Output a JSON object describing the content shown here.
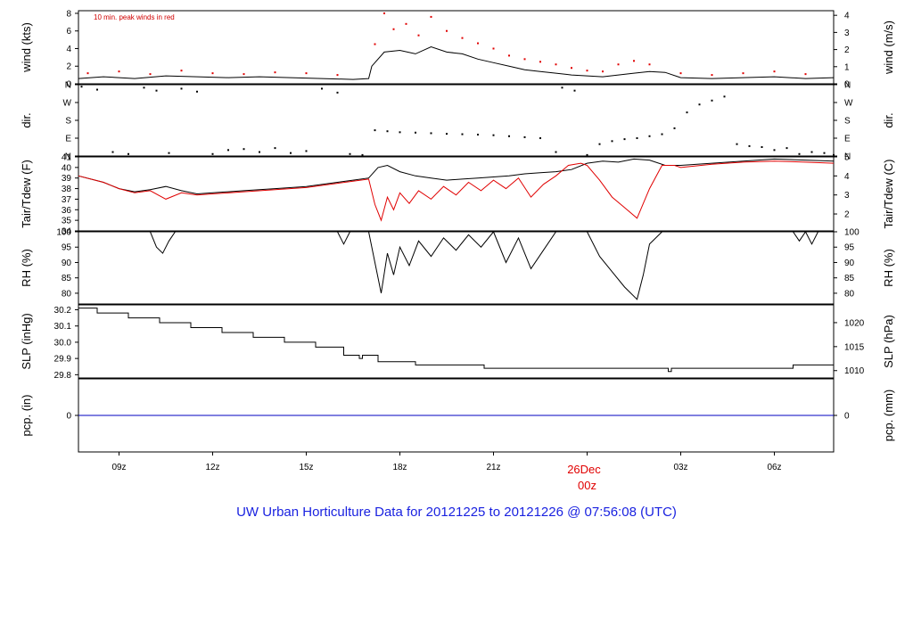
{
  "title": "UW Urban Horticulture Data for 20121225  to  20121226 @ 07:56:08  (UTC)",
  "colors": {
    "series": "#000000",
    "dewpoint": "#e00000",
    "peak": "#e00000",
    "precip": "#0000c0",
    "title": "#1a22e0"
  },
  "x_axis": {
    "hours_range": [
      7.7,
      31.9
    ],
    "ticks": [
      {
        "hour": 9,
        "label": "09z"
      },
      {
        "hour": 12,
        "label": "12z"
      },
      {
        "hour": 15,
        "label": "15z"
      },
      {
        "hour": 18,
        "label": "18z"
      },
      {
        "hour": 21,
        "label": "21z"
      },
      {
        "hour": 24,
        "label": "00z"
      },
      {
        "hour": 27,
        "label": "03z"
      },
      {
        "hour": 30,
        "label": "06z"
      }
    ],
    "day_label": "26Dec"
  },
  "chart_data": [
    {
      "type": "line",
      "panel": "wind",
      "ylabel_left": "wind (kts)",
      "ylabel_right": "wind (m/s)",
      "annotation": "10 min. peak winds in red",
      "ylim": [
        0,
        8.3
      ],
      "yticks_left": [
        0,
        2,
        4,
        6,
        8
      ],
      "yticks_right": [
        0,
        1,
        2,
        3,
        4
      ],
      "right_factor": 0.5144,
      "series": [
        {
          "label": "wind",
          "x": [
            7.7,
            8.5,
            9.5,
            10.5,
            11.5,
            12.5,
            13.5,
            14.5,
            15.5,
            16.5,
            17.0,
            17.1,
            17.5,
            18.0,
            18.5,
            19.0,
            19.5,
            20.0,
            20.5,
            21.0,
            21.5,
            22.0,
            22.5,
            23.0,
            23.5,
            24.0,
            24.5,
            25.0,
            25.5,
            26.0,
            26.5,
            27.0,
            28.0,
            29.0,
            30.0,
            31.0,
            31.9
          ],
          "y": [
            0.6,
            0.8,
            0.6,
            0.9,
            0.8,
            0.7,
            0.8,
            0.7,
            0.6,
            0.5,
            0.6,
            2.0,
            3.6,
            3.8,
            3.4,
            4.2,
            3.6,
            3.4,
            2.8,
            2.4,
            2.0,
            1.6,
            1.4,
            1.2,
            1.0,
            0.9,
            0.8,
            1.0,
            1.2,
            1.4,
            1.3,
            0.7,
            0.6,
            0.7,
            0.8,
            0.6,
            0.7
          ]
        },
        {
          "label": "peak",
          "x": [
            8.0,
            9.0,
            10.0,
            11.0,
            12.0,
            13.0,
            14.0,
            15.0,
            16.0,
            17.2,
            17.5,
            17.8,
            18.2,
            18.6,
            19.0,
            19.5,
            20.0,
            20.5,
            21.0,
            21.5,
            22.0,
            22.5,
            23.0,
            23.5,
            24.0,
            24.5,
            25.0,
            25.5,
            26.0,
            27.0,
            28.0,
            29.0,
            30.0,
            31.0
          ],
          "y": [
            1.2,
            1.4,
            1.1,
            1.5,
            1.2,
            1.1,
            1.3,
            1.2,
            1.0,
            4.5,
            8.0,
            6.2,
            6.8,
            5.5,
            7.6,
            6.0,
            5.2,
            4.6,
            4.0,
            3.2,
            2.8,
            2.5,
            2.2,
            1.8,
            1.5,
            1.4,
            2.2,
            2.6,
            2.2,
            1.2,
            1.0,
            1.2,
            1.4,
            1.1
          ]
        }
      ]
    },
    {
      "type": "scatter",
      "panel": "dir",
      "ylabel_left": "dir.",
      "ylabel_right": "dir.",
      "ylim": [
        0,
        360
      ],
      "ytick_labels": [
        "N",
        "E",
        "S",
        "W",
        "N"
      ],
      "ytick_values": [
        0,
        90,
        180,
        270,
        360
      ],
      "series": [
        {
          "label": "direction",
          "x": [
            7.8,
            8.3,
            8.8,
            9.3,
            9.8,
            10.2,
            10.6,
            11.0,
            11.5,
            12.0,
            12.5,
            13.0,
            13.5,
            14.0,
            14.5,
            15.0,
            15.5,
            16.0,
            16.4,
            16.8,
            17.2,
            17.6,
            18.0,
            18.5,
            19.0,
            19.5,
            20.0,
            20.5,
            21.0,
            21.5,
            22.0,
            22.5,
            23.0,
            23.2,
            23.6,
            24.0,
            24.4,
            24.8,
            25.2,
            25.6,
            26.0,
            26.4,
            26.8,
            27.2,
            27.6,
            28.0,
            28.4,
            28.8,
            29.2,
            29.6,
            30.0,
            30.4,
            30.8,
            31.2,
            31.6,
            31.9
          ],
          "y": [
            350,
            335,
            20,
            10,
            345,
            330,
            15,
            340,
            325,
            10,
            30,
            35,
            20,
            40,
            15,
            25,
            340,
            320,
            10,
            5,
            130,
            125,
            120,
            118,
            115,
            112,
            110,
            108,
            105,
            100,
            95,
            90,
            20,
            345,
            330,
            5,
            60,
            75,
            85,
            90,
            100,
            110,
            140,
            220,
            260,
            280,
            300,
            60,
            50,
            45,
            30,
            40,
            10,
            20,
            15,
            5
          ]
        }
      ]
    },
    {
      "type": "line",
      "panel": "temperature",
      "ylabel_left": "Tair/Tdew (F)",
      "ylabel_right": "Tair/Tdew (C)",
      "ylim": [
        34,
        41
      ],
      "yticks_left": [
        34,
        35,
        36,
        37,
        38,
        39,
        40,
        41
      ],
      "yticks_right": [
        2,
        3,
        4,
        5
      ],
      "series": [
        {
          "label": "Tair",
          "x": [
            7.7,
            8.5,
            9.0,
            9.5,
            10.0,
            10.5,
            11.0,
            11.5,
            12.0,
            13.0,
            14.0,
            15.0,
            16.0,
            16.5,
            17.0,
            17.3,
            17.6,
            18.0,
            18.5,
            19.0,
            19.5,
            20.0,
            20.5,
            21.0,
            21.5,
            22.0,
            22.5,
            23.0,
            23.5,
            24.0,
            24.5,
            25.0,
            25.5,
            26.0,
            26.5,
            27.0,
            28.0,
            29.0,
            30.0,
            31.0,
            31.9
          ],
          "y": [
            39.2,
            38.6,
            38.0,
            37.7,
            37.9,
            38.2,
            37.8,
            37.5,
            37.6,
            37.8,
            38.0,
            38.2,
            38.6,
            38.8,
            39.0,
            40.0,
            40.2,
            39.6,
            39.2,
            39.0,
            38.8,
            38.9,
            39.0,
            39.1,
            39.2,
            39.4,
            39.5,
            39.6,
            39.8,
            40.4,
            40.6,
            40.5,
            40.8,
            40.7,
            40.2,
            40.2,
            40.4,
            40.6,
            40.8,
            40.7,
            40.6
          ]
        },
        {
          "label": "Tdew",
          "x": [
            7.7,
            8.5,
            9.0,
            9.5,
            10.0,
            10.5,
            11.0,
            11.5,
            12.0,
            13.0,
            14.0,
            15.0,
            16.0,
            16.5,
            17.0,
            17.2,
            17.4,
            17.6,
            17.8,
            18.0,
            18.3,
            18.6,
            19.0,
            19.4,
            19.8,
            20.2,
            20.6,
            21.0,
            21.4,
            21.8,
            22.2,
            22.6,
            23.0,
            23.4,
            23.8,
            24.0,
            24.4,
            24.8,
            25.2,
            25.6,
            26.0,
            26.4,
            26.8,
            27.0,
            28.0,
            29.0,
            30.0,
            31.0,
            31.9
          ],
          "y": [
            39.2,
            38.6,
            38.0,
            37.6,
            37.8,
            37.0,
            37.6,
            37.4,
            37.5,
            37.7,
            37.9,
            38.1,
            38.5,
            38.7,
            38.9,
            36.5,
            35.0,
            37.2,
            36.0,
            37.6,
            36.6,
            37.8,
            37.0,
            38.2,
            37.4,
            38.6,
            37.8,
            38.8,
            38.0,
            39.0,
            37.2,
            38.4,
            39.2,
            40.2,
            40.4,
            40.2,
            38.8,
            37.2,
            36.2,
            35.2,
            38.0,
            40.2,
            40.2,
            40.0,
            40.3,
            40.5,
            40.6,
            40.5,
            40.4
          ]
        }
      ]
    },
    {
      "type": "line",
      "panel": "rh",
      "ylabel_left": "RH (%)",
      "ylabel_right": "RH (%)",
      "ylim": [
        76.5,
        100
      ],
      "yticks_left": [
        80,
        85,
        90,
        95,
        100
      ],
      "yticks_right": [
        80,
        85,
        90,
        95,
        100
      ],
      "series": [
        {
          "label": "RH",
          "x": [
            7.7,
            9.0,
            10.0,
            10.2,
            10.4,
            10.6,
            10.8,
            11.5,
            13.0,
            15.0,
            16.0,
            16.2,
            16.4,
            16.6,
            17.0,
            17.2,
            17.4,
            17.6,
            17.8,
            18.0,
            18.3,
            18.6,
            19.0,
            19.4,
            19.8,
            20.2,
            20.6,
            21.0,
            21.4,
            21.8,
            22.2,
            22.6,
            23.0,
            23.4,
            23.8,
            24.0,
            24.4,
            24.8,
            25.2,
            25.6,
            25.8,
            26.0,
            26.4,
            27.0,
            28.0,
            29.0,
            30.0,
            30.6,
            30.8,
            31.0,
            31.2,
            31.4,
            31.9
          ],
          "y": [
            100,
            100,
            100,
            95,
            93,
            97,
            100,
            100,
            100,
            100,
            100,
            96,
            100,
            100,
            100,
            90,
            80,
            93,
            86,
            95,
            89,
            97,
            92,
            98,
            94,
            99,
            95,
            100,
            90,
            98,
            88,
            94,
            100,
            100,
            100,
            100,
            92,
            87,
            82,
            78,
            86,
            96,
            100,
            100,
            100,
            100,
            100,
            100,
            97,
            100,
            96,
            100,
            100
          ]
        }
      ]
    },
    {
      "type": "line",
      "panel": "slp",
      "ylabel_left": "SLP (inHg)",
      "ylabel_right": "SLP (hPa)",
      "ylim": [
        29.78,
        30.23
      ],
      "yticks_left": [
        29.8,
        29.9,
        30.0,
        30.1,
        30.2
      ],
      "ytick_labels_left": [
        "29.8",
        "29.9",
        "30.0",
        "30.1",
        "30.2"
      ],
      "yticks_right_hpa": [
        1010,
        1015,
        1020
      ],
      "series": [
        {
          "label": "SLP",
          "x": [
            7.7,
            8.3,
            8.3,
            9.3,
            9.3,
            10.3,
            10.3,
            11.3,
            11.3,
            12.3,
            12.3,
            13.3,
            13.3,
            14.3,
            14.3,
            15.3,
            15.3,
            16.2,
            16.2,
            16.7,
            16.7,
            16.8,
            16.8,
            17.3,
            17.3,
            18.5,
            18.5,
            20.7,
            20.7,
            26.6,
            26.6,
            26.7,
            26.7,
            30.6,
            30.6,
            31.9
          ],
          "y": [
            30.21,
            30.21,
            30.18,
            30.18,
            30.15,
            30.15,
            30.12,
            30.12,
            30.09,
            30.09,
            30.06,
            30.06,
            30.03,
            30.03,
            30.0,
            30.0,
            29.97,
            29.97,
            29.92,
            29.92,
            29.9,
            29.9,
            29.92,
            29.92,
            29.88,
            29.88,
            29.86,
            29.86,
            29.84,
            29.84,
            29.82,
            29.82,
            29.84,
            29.84,
            29.86,
            29.86
          ]
        }
      ]
    },
    {
      "type": "line",
      "panel": "precip",
      "ylabel_left": "pcp. (in)",
      "ylabel_right": "pcp. (mm)",
      "ylim": [
        -1,
        1
      ],
      "yticks_left": [
        0
      ],
      "yticks_right": [
        0
      ],
      "series": [
        {
          "label": "precip",
          "x": [
            7.7,
            31.9
          ],
          "y": [
            0,
            0
          ]
        }
      ]
    }
  ]
}
